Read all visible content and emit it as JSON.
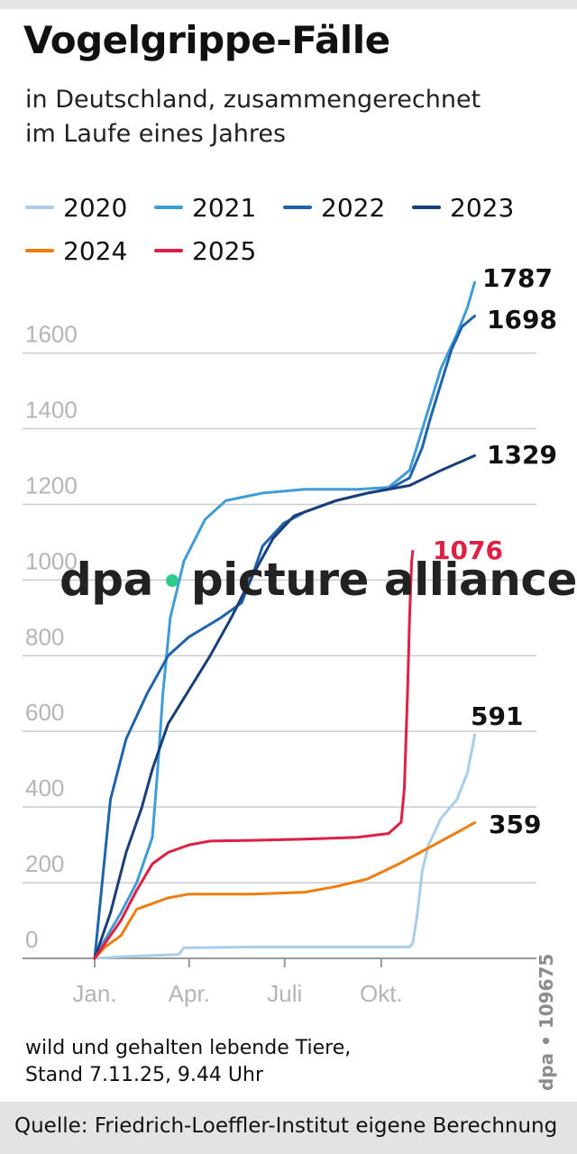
{
  "title": "Vogelgrippe-Fälle",
  "subtitle_line1": "in Deutschland, zusammengerechnet",
  "subtitle_line2": "im Laufe eines Jahres",
  "footnote_line1": "wild und gehalten lebende Tiere,",
  "footnote_line2": "Stand 7.11.25, 9.44 Uhr",
  "credit": "dpa • 109675",
  "source": "Quelle: Friedrich-Loeffler-Institut eigene Berechnung",
  "watermark": {
    "left": "dpa",
    "right": "picture alliance",
    "dot_color": "#2ecc8a"
  },
  "chart_data": {
    "type": "line",
    "title": "Vogelgrippe-Fälle",
    "xlabel": "",
    "ylabel": "",
    "x_ticks": [
      {
        "label": "Jan.",
        "day": 0
      },
      {
        "label": "Apr.",
        "day": 90
      },
      {
        "label": "Juli",
        "day": 181
      },
      {
        "label": "Okt.",
        "day": 273
      }
    ],
    "y_ticks": [
      0,
      200,
      400,
      600,
      800,
      1000,
      1200,
      1400,
      1600
    ],
    "ylim": [
      0,
      1800
    ],
    "xlim": [
      0,
      365
    ],
    "series": [
      {
        "name": "2020",
        "color": "#a9cdea",
        "end_label": "591",
        "end_label_color": "#111111",
        "points": [
          [
            0,
            0
          ],
          [
            30,
            5
          ],
          [
            80,
            10
          ],
          [
            85,
            28
          ],
          [
            150,
            30
          ],
          [
            250,
            30
          ],
          [
            300,
            30
          ],
          [
            303,
            40
          ],
          [
            307,
            110
          ],
          [
            312,
            230
          ],
          [
            318,
            300
          ],
          [
            330,
            370
          ],
          [
            345,
            420
          ],
          [
            355,
            490
          ],
          [
            360,
            560
          ],
          [
            362,
            591
          ]
        ]
      },
      {
        "name": "2021",
        "color": "#3f9cd6",
        "end_label": "1787",
        "end_label_color": "#111111",
        "points": [
          [
            0,
            0
          ],
          [
            10,
            50
          ],
          [
            25,
            120
          ],
          [
            40,
            200
          ],
          [
            55,
            320
          ],
          [
            60,
            500
          ],
          [
            65,
            700
          ],
          [
            72,
            900
          ],
          [
            85,
            1050
          ],
          [
            105,
            1160
          ],
          [
            125,
            1210
          ],
          [
            160,
            1230
          ],
          [
            200,
            1240
          ],
          [
            250,
            1240
          ],
          [
            280,
            1245
          ],
          [
            300,
            1290
          ],
          [
            310,
            1380
          ],
          [
            320,
            1470
          ],
          [
            330,
            1560
          ],
          [
            345,
            1650
          ],
          [
            355,
            1720
          ],
          [
            362,
            1787
          ]
        ]
      },
      {
        "name": "2022",
        "color": "#1f63ad",
        "end_label": "1698",
        "end_label_color": "#111111",
        "points": [
          [
            0,
            0
          ],
          [
            15,
            420
          ],
          [
            30,
            580
          ],
          [
            50,
            700
          ],
          [
            70,
            800
          ],
          [
            90,
            850
          ],
          [
            120,
            900
          ],
          [
            140,
            940
          ],
          [
            150,
            1010
          ],
          [
            160,
            1090
          ],
          [
            180,
            1150
          ],
          [
            200,
            1180
          ],
          [
            230,
            1210
          ],
          [
            260,
            1230
          ],
          [
            280,
            1240
          ],
          [
            300,
            1270
          ],
          [
            312,
            1350
          ],
          [
            320,
            1430
          ],
          [
            330,
            1520
          ],
          [
            340,
            1610
          ],
          [
            350,
            1670
          ],
          [
            362,
            1698
          ]
        ]
      },
      {
        "name": "2023",
        "color": "#183f7a",
        "end_label": "1329",
        "end_label_color": "#111111",
        "points": [
          [
            0,
            0
          ],
          [
            15,
            120
          ],
          [
            30,
            280
          ],
          [
            45,
            400
          ],
          [
            55,
            500
          ],
          [
            70,
            620
          ],
          [
            90,
            710
          ],
          [
            110,
            800
          ],
          [
            130,
            900
          ],
          [
            150,
            1010
          ],
          [
            170,
            1110
          ],
          [
            190,
            1170
          ],
          [
            230,
            1210
          ],
          [
            260,
            1230
          ],
          [
            300,
            1250
          ],
          [
            330,
            1290
          ],
          [
            362,
            1329
          ]
        ]
      },
      {
        "name": "2024",
        "color": "#ef7d0f",
        "end_label": "359",
        "end_label_color": "#111111",
        "points": [
          [
            0,
            0
          ],
          [
            10,
            30
          ],
          [
            25,
            60
          ],
          [
            40,
            130
          ],
          [
            55,
            145
          ],
          [
            70,
            160
          ],
          [
            90,
            170
          ],
          [
            150,
            170
          ],
          [
            200,
            175
          ],
          [
            230,
            190
          ],
          [
            260,
            210
          ],
          [
            275,
            230
          ],
          [
            290,
            250
          ],
          [
            310,
            280
          ],
          [
            330,
            310
          ],
          [
            350,
            340
          ],
          [
            362,
            359
          ]
        ]
      },
      {
        "name": "2025",
        "color": "#dd2043",
        "end_label": "1076",
        "end_label_color": "#dd2043",
        "points": [
          [
            0,
            0
          ],
          [
            10,
            40
          ],
          [
            25,
            100
          ],
          [
            40,
            180
          ],
          [
            55,
            250
          ],
          [
            70,
            280
          ],
          [
            90,
            300
          ],
          [
            110,
            310
          ],
          [
            150,
            312
          ],
          [
            200,
            315
          ],
          [
            250,
            320
          ],
          [
            280,
            330
          ],
          [
            292,
            360
          ],
          [
            295,
            450
          ],
          [
            298,
            700
          ],
          [
            300,
            900
          ],
          [
            302,
            1050
          ],
          [
            303,
            1076
          ]
        ]
      }
    ]
  }
}
